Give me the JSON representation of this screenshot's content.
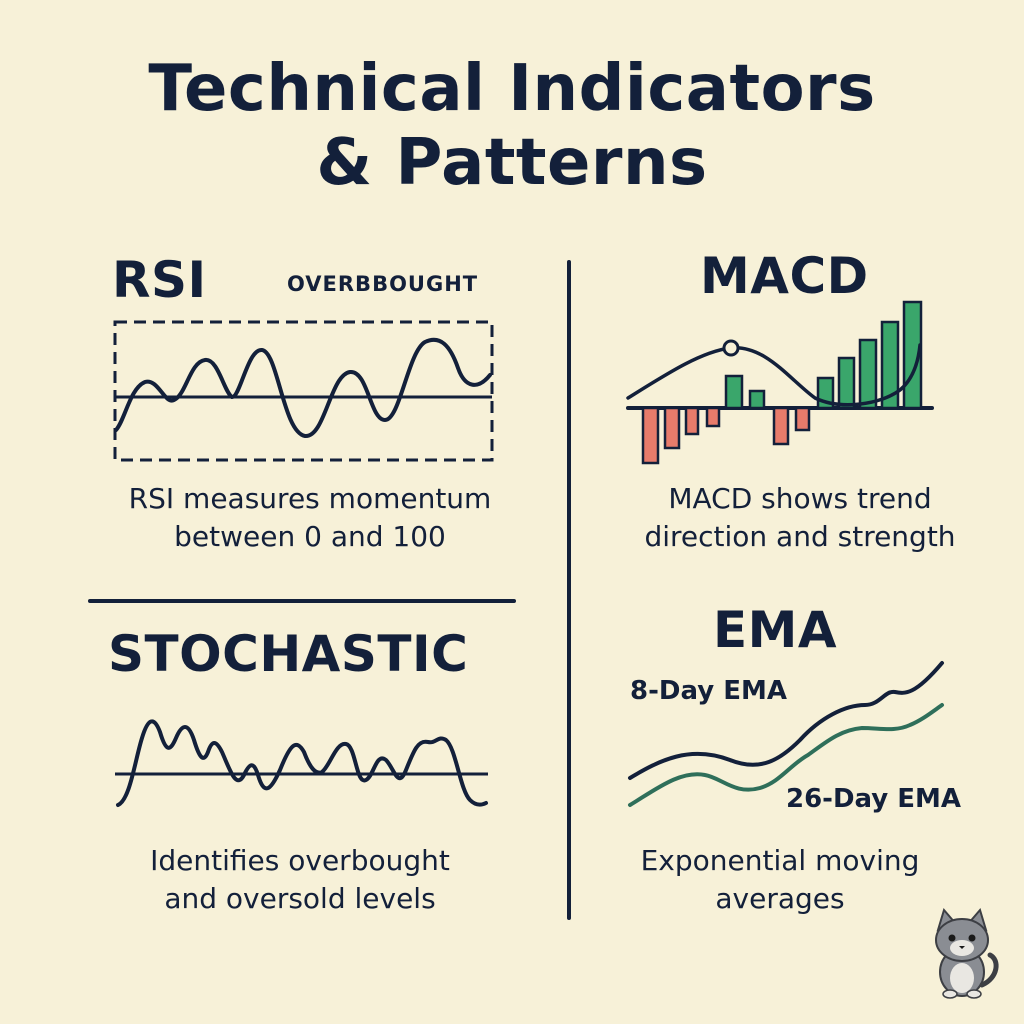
{
  "title": {
    "line1": "Technical Indicators",
    "line2": "& Patterns"
  },
  "rsi": {
    "heading": "RSI",
    "band_label": "OVERBBOUGHT",
    "caption_line1": "RSI measures momentum",
    "caption_line2": "between 0 and 100"
  },
  "macd": {
    "heading": "MACD",
    "caption_line1": "MACD shows trend",
    "caption_line2": "direction and strength",
    "colors": {
      "positive": "#3aa66b",
      "negative": "#e77b6b"
    }
  },
  "stochastic": {
    "heading": "STOCHASTIC",
    "caption_line1": "Identifies overbought",
    "caption_line2": "and oversold levels"
  },
  "ema": {
    "heading": "EMA",
    "label_fast": "8-Day EMA",
    "label_slow": "26-Day EMA",
    "caption_line1": "Exponential moving",
    "caption_line2": "averages",
    "colors": {
      "fast": "#13203a",
      "slow": "#2f6f5a"
    }
  },
  "mascot": {
    "icon": "cat-icon"
  }
}
